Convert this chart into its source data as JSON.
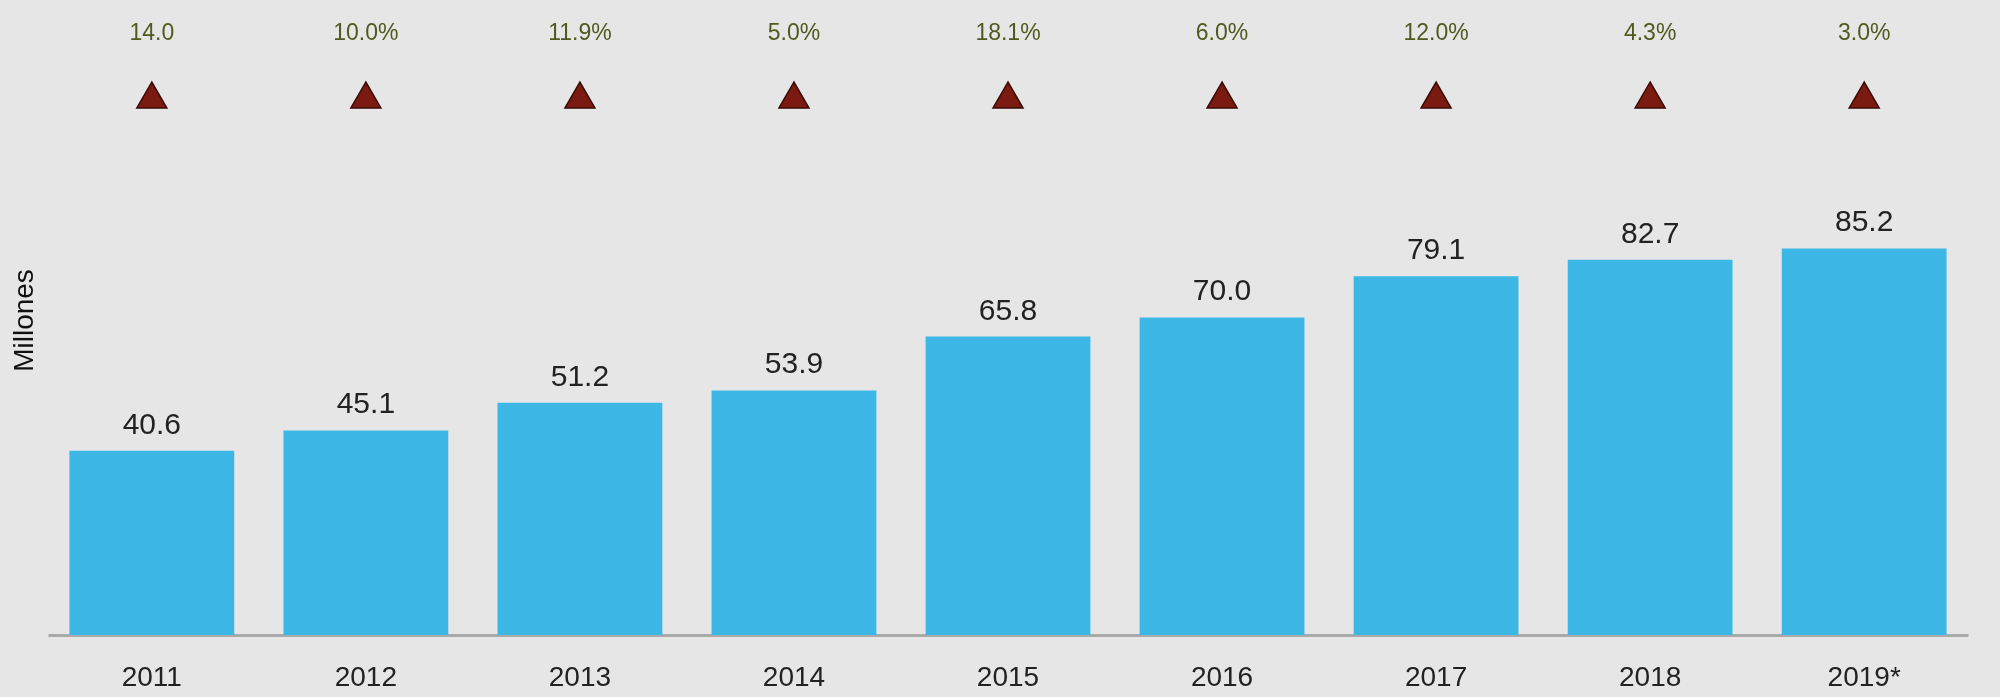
{
  "chart_data": {
    "type": "bar",
    "ylabel": "Millones",
    "categories": [
      "2011",
      "2012",
      "2013",
      "2014",
      "2015",
      "2016",
      "2017",
      "2018",
      "2019*"
    ],
    "values": [
      40.6,
      45.1,
      51.2,
      53.9,
      65.8,
      70.0,
      79.1,
      82.7,
      85.2
    ],
    "color": "#3db7e6",
    "value_labels": [
      "40.6",
      "45.1",
      "51.2",
      "53.9",
      "65.8",
      "70.0",
      "79.1",
      "82.7",
      "85.2"
    ],
    "annotations": [
      "14.0",
      "10.0%",
      "11.9%",
      "5.0%",
      "18.1%",
      "6.0%",
      "12.0%",
      "4.3%",
      "3.0%"
    ]
  }
}
